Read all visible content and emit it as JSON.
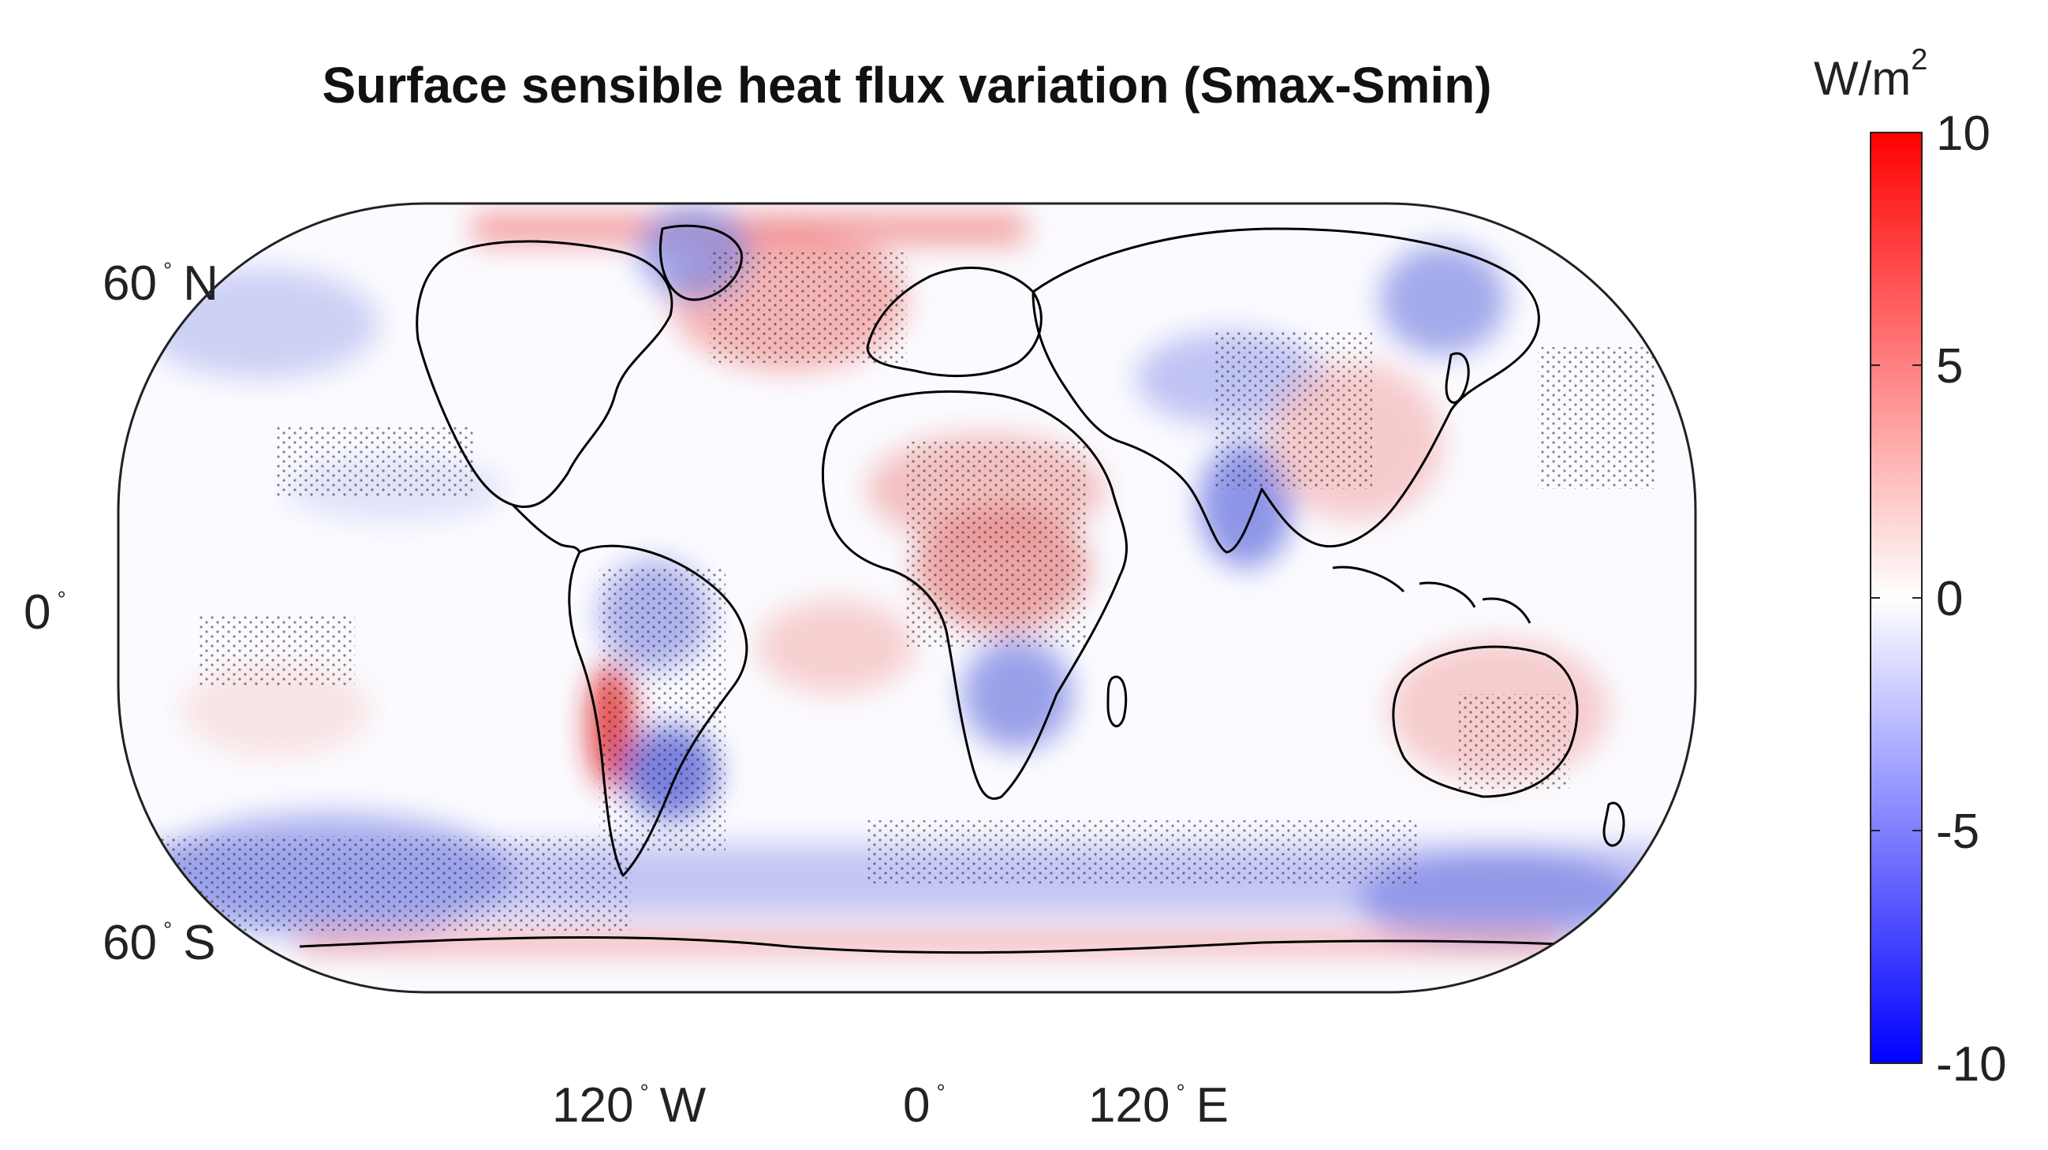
{
  "title": "Surface sensible heat flux variation (Smax-Smin)",
  "colorbar": {
    "unit_base": "W/m",
    "unit_exp": "2",
    "ticks": [
      "10",
      "5",
      "0",
      "-5",
      "-10"
    ],
    "range": [
      -10,
      10
    ],
    "colors": {
      "max": "#ff0000",
      "mid": "#ffffff",
      "min": "#0000ff"
    }
  },
  "lat_labels": {
    "north": {
      "deg": "60",
      "dir": "N"
    },
    "equator": {
      "deg": "0",
      "dir": ""
    },
    "south": {
      "deg": "60",
      "dir": "S"
    }
  },
  "lon_labels": {
    "west": {
      "deg": "120",
      "dir": "W"
    },
    "center": {
      "deg": "0",
      "dir": ""
    },
    "east": {
      "deg": "120",
      "dir": "E"
    }
  },
  "degree_symbol": "°",
  "projection": "robinson-like rounded global map",
  "coastline_color": "#000000"
}
